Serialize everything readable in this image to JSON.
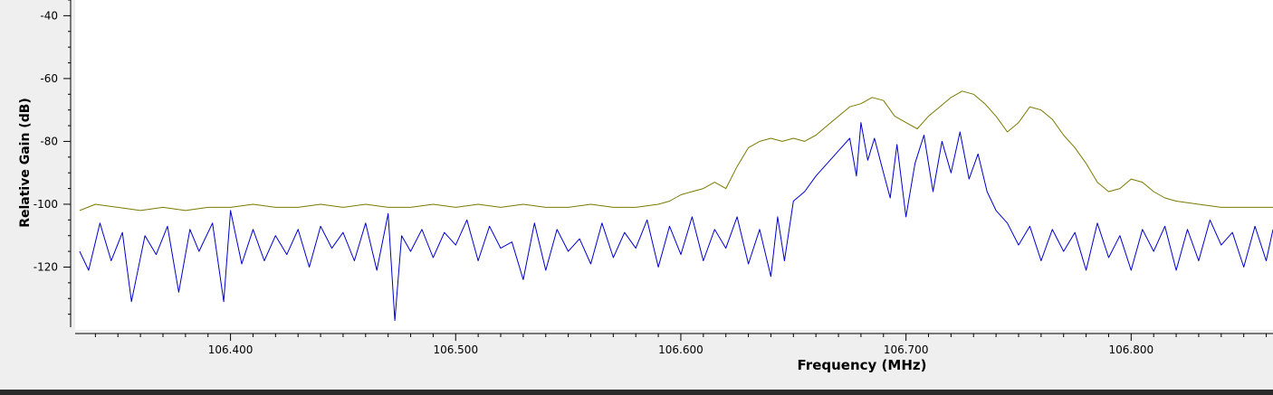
{
  "colors": {
    "background": "#efefef",
    "canvas": "#ffffff",
    "series_max_hold": "#7a7a00",
    "series_live": "#0000cc"
  },
  "chart_data": {
    "type": "line",
    "xlabel": "Frequency (MHz)",
    "ylabel": "Relative Gain (dB)",
    "xlim": [
      106.331,
      106.863
    ],
    "ylim": [
      -140,
      -35
    ],
    "x_ticks": [
      106.4,
      106.5,
      106.6,
      106.7,
      106.8
    ],
    "x_tick_labels": [
      "106.400",
      "106.500",
      "106.600",
      "106.700",
      "106.800"
    ],
    "y_ticks": [
      -40,
      -60,
      -80,
      -100,
      -120
    ],
    "y_tick_labels": [
      "-40",
      "-60",
      "-80",
      "-100",
      "-120"
    ],
    "grid": false,
    "legend": "none",
    "series": [
      {
        "color": "#7a7a00",
        "x": [
          106.333,
          106.34,
          106.35,
          106.36,
          106.37,
          106.38,
          106.39,
          106.4,
          106.41,
          106.42,
          106.43,
          106.44,
          106.45,
          106.46,
          106.47,
          106.48,
          106.49,
          106.5,
          106.51,
          106.52,
          106.53,
          106.54,
          106.55,
          106.56,
          106.57,
          106.58,
          106.59,
          106.595,
          106.6,
          106.605,
          106.61,
          106.615,
          106.62,
          106.625,
          106.63,
          106.635,
          106.64,
          106.645,
          106.65,
          106.655,
          106.66,
          106.665,
          106.67,
          106.675,
          106.68,
          106.685,
          106.69,
          106.695,
          106.7,
          106.705,
          106.71,
          106.715,
          106.72,
          106.725,
          106.73,
          106.735,
          106.74,
          106.745,
          106.75,
          106.755,
          106.76,
          106.765,
          106.77,
          106.775,
          106.78,
          106.785,
          106.79,
          106.795,
          106.8,
          106.805,
          106.81,
          106.815,
          106.82,
          106.83,
          106.84,
          106.85,
          106.86,
          106.863
        ],
        "y": [
          -102,
          -100,
          -101,
          -102,
          -101,
          -102,
          -101,
          -101,
          -100,
          -101,
          -101,
          -100,
          -101,
          -100,
          -101,
          -101,
          -100,
          -101,
          -100,
          -101,
          -100,
          -101,
          -101,
          -100,
          -101,
          -101,
          -100,
          -99,
          -97,
          -96,
          -95,
          -93,
          -95,
          -88,
          -82,
          -80,
          -79,
          -80,
          -79,
          -80,
          -78,
          -75,
          -72,
          -69,
          -68,
          -66,
          -67,
          -72,
          -74,
          -76,
          -72,
          -69,
          -66,
          -64,
          -65,
          -68,
          -72,
          -77,
          -74,
          -69,
          -70,
          -73,
          -78,
          -82,
          -87,
          -93,
          -96,
          -95,
          -92,
          -93,
          -96,
          -98,
          -99,
          -100,
          -101,
          -101,
          -101,
          -101
        ]
      },
      {
        "color": "#0000cc",
        "x": [
          106.333,
          106.337,
          106.342,
          106.347,
          106.352,
          106.356,
          106.362,
          106.367,
          106.372,
          106.377,
          106.382,
          106.386,
          106.392,
          106.397,
          106.4,
          106.405,
          106.41,
          106.415,
          106.42,
          106.425,
          106.43,
          106.435,
          106.44,
          106.445,
          106.45,
          106.455,
          106.46,
          106.465,
          106.47,
          106.473,
          106.476,
          106.48,
          106.485,
          106.49,
          106.495,
          106.5,
          106.505,
          106.51,
          106.515,
          106.52,
          106.525,
          106.53,
          106.535,
          106.54,
          106.545,
          106.55,
          106.555,
          106.56,
          106.565,
          106.57,
          106.575,
          106.58,
          106.585,
          106.59,
          106.595,
          106.6,
          106.605,
          106.61,
          106.615,
          106.62,
          106.625,
          106.63,
          106.635,
          106.64,
          106.643,
          106.646,
          106.65,
          106.655,
          106.66,
          106.665,
          106.67,
          106.675,
          106.678,
          106.68,
          106.683,
          106.686,
          106.69,
          106.693,
          106.696,
          106.7,
          106.704,
          106.708,
          106.712,
          106.716,
          106.72,
          106.724,
          106.728,
          106.732,
          106.736,
          106.74,
          106.745,
          106.75,
          106.755,
          106.76,
          106.765,
          106.77,
          106.775,
          106.78,
          106.785,
          106.79,
          106.795,
          106.8,
          106.805,
          106.81,
          106.815,
          106.82,
          106.825,
          106.83,
          106.835,
          106.84,
          106.845,
          106.85,
          106.855,
          106.86,
          106.863
        ],
        "y": [
          -115,
          -121,
          -106,
          -118,
          -109,
          -131,
          -110,
          -116,
          -107,
          -128,
          -108,
          -115,
          -106,
          -131,
          -102,
          -119,
          -108,
          -118,
          -110,
          -116,
          -108,
          -120,
          -107,
          -114,
          -109,
          -118,
          -106,
          -121,
          -103,
          -137,
          -110,
          -115,
          -108,
          -117,
          -109,
          -113,
          -105,
          -118,
          -107,
          -114,
          -112,
          -124,
          -106,
          -121,
          -108,
          -115,
          -111,
          -119,
          -106,
          -117,
          -109,
          -114,
          -105,
          -120,
          -107,
          -116,
          -104,
          -118,
          -108,
          -114,
          -104,
          -119,
          -108,
          -123,
          -104,
          -118,
          -99,
          -96,
          -91,
          -87,
          -83,
          -79,
          -91,
          -74,
          -86,
          -79,
          -90,
          -98,
          -81,
          -104,
          -87,
          -78,
          -96,
          -80,
          -90,
          -77,
          -92,
          -84,
          -96,
          -102,
          -106,
          -113,
          -107,
          -118,
          -108,
          -115,
          -109,
          -121,
          -106,
          -117,
          -110,
          -121,
          -108,
          -115,
          -107,
          -121,
          -108,
          -118,
          -105,
          -113,
          -109,
          -120,
          -107,
          -118,
          -108
        ]
      }
    ]
  }
}
